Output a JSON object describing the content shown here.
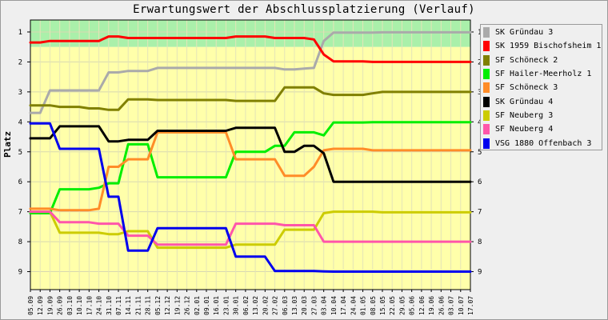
{
  "chart_data": {
    "type": "line",
    "title": "Erwartungswert der Abschlussplatzierung (Verlauf)",
    "ylabel": "Platz",
    "xlabel": "",
    "ylim": [
      0.6,
      9.6
    ],
    "y_ticks": [
      1,
      2,
      3,
      4,
      5,
      6,
      7,
      8,
      9
    ],
    "grid": true,
    "y_axis_reversed": true,
    "legend_position": "right",
    "background_bands": [
      {
        "from": 0.6,
        "to": 1.5,
        "color": "#aaf0aa"
      },
      {
        "from": 1.5,
        "to": 9.6,
        "color": "#ffffaa"
      }
    ],
    "categories": [
      "05.09",
      "12.09",
      "19.09",
      "26.09",
      "03.10",
      "10.10",
      "17.10",
      "24.10",
      "31.10",
      "07.11",
      "14.11",
      "21.11",
      "28.11",
      "05.12",
      "12.12",
      "19.12",
      "26.12",
      "02.01",
      "09.01",
      "16.01",
      "23.01",
      "30.01",
      "06.02",
      "13.02",
      "20.02",
      "27.02",
      "06.03",
      "13.03",
      "20.03",
      "27.03",
      "03.04",
      "10.04",
      "17.04",
      "24.04",
      "01.05",
      "08.05",
      "15.05",
      "22.05",
      "29.05",
      "05.06",
      "12.06",
      "19.06",
      "26.06",
      "03.07",
      "10.07",
      "17.07"
    ],
    "x_ticks": [
      "05.09",
      "12.09",
      "19.09",
      "26.09",
      "03.10",
      "10.10",
      "17.10",
      "24.10",
      "31.10",
      "07.11",
      "14.11",
      "21.11",
      "28.11",
      "05.12",
      "12.12",
      "19.12",
      "26.12",
      "02.01",
      "09.01",
      "16.01",
      "23.01",
      "30.01",
      "06.02",
      "13.02",
      "20.02",
      "27.02",
      "06.03",
      "13.03",
      "20.03",
      "27.03",
      "03.04",
      "10.04",
      "17.04",
      "24.04",
      "01.05",
      "08.05",
      "15.05",
      "22.05",
      "29.05",
      "05.06",
      "12.06",
      "19.06",
      "26.06",
      "03.07",
      "10.07",
      "17.07"
    ],
    "series": [
      {
        "name": "SK Gründau 3",
        "color": "#aaaaaa",
        "values": [
          3.7,
          3.7,
          2.95,
          2.95,
          2.95,
          2.95,
          2.95,
          2.95,
          2.35,
          2.35,
          2.3,
          2.3,
          2.3,
          2.2,
          2.2,
          2.2,
          2.2,
          2.2,
          2.2,
          2.2,
          2.2,
          2.2,
          2.2,
          2.2,
          2.2,
          2.2,
          2.25,
          2.25,
          2.22,
          2.2,
          1.3,
          1.02,
          1.02,
          1.02,
          1.02,
          1.02,
          1.01,
          1.01,
          1.01,
          1.01,
          1.01,
          1.01,
          1.01,
          1.01,
          1.01,
          1.01
        ]
      },
      {
        "name": "SK 1959 Bischofsheim 1",
        "color": "#ff0000",
        "values": [
          1.35,
          1.35,
          1.3,
          1.3,
          1.3,
          1.3,
          1.3,
          1.3,
          1.15,
          1.15,
          1.2,
          1.2,
          1.2,
          1.2,
          1.2,
          1.2,
          1.2,
          1.2,
          1.2,
          1.2,
          1.2,
          1.15,
          1.15,
          1.15,
          1.15,
          1.2,
          1.2,
          1.2,
          1.2,
          1.25,
          1.75,
          1.98,
          1.98,
          1.98,
          1.98,
          2.0,
          2.0,
          2.0,
          2.0,
          2.0,
          2.0,
          2.0,
          2.0,
          2.0,
          2.0,
          2.0
        ]
      },
      {
        "name": "SF Schöneck 2",
        "color": "#808000",
        "values": [
          3.45,
          3.45,
          3.45,
          3.5,
          3.5,
          3.5,
          3.55,
          3.55,
          3.6,
          3.6,
          3.25,
          3.25,
          3.25,
          3.27,
          3.27,
          3.27,
          3.27,
          3.27,
          3.27,
          3.27,
          3.27,
          3.3,
          3.3,
          3.3,
          3.3,
          3.3,
          2.85,
          2.85,
          2.85,
          2.85,
          3.05,
          3.1,
          3.1,
          3.1,
          3.1,
          3.05,
          3.0,
          3.0,
          3.0,
          3.0,
          3.0,
          3.0,
          3.0,
          3.0,
          3.0,
          3.0
        ]
      },
      {
        "name": "SF Hailer-Meerholz 1",
        "color": "#00ee00",
        "values": [
          7.05,
          7.05,
          7.05,
          6.25,
          6.25,
          6.25,
          6.25,
          6.2,
          6.05,
          6.05,
          4.75,
          4.75,
          4.75,
          5.85,
          5.85,
          5.85,
          5.85,
          5.85,
          5.85,
          5.85,
          5.85,
          5.0,
          5.0,
          5.0,
          5.0,
          4.8,
          4.8,
          4.35,
          4.35,
          4.35,
          4.45,
          4.02,
          4.02,
          4.02,
          4.02,
          4.01,
          4.01,
          4.01,
          4.01,
          4.01,
          4.01,
          4.01,
          4.01,
          4.01,
          4.01,
          4.01
        ]
      },
      {
        "name": "SF Schöneck 3",
        "color": "#ff8c28",
        "values": [
          6.9,
          6.9,
          6.9,
          6.95,
          6.95,
          6.95,
          6.95,
          6.9,
          5.5,
          5.5,
          5.25,
          5.25,
          5.25,
          4.35,
          4.35,
          4.35,
          4.35,
          4.35,
          4.35,
          4.35,
          4.35,
          5.25,
          5.25,
          5.25,
          5.25,
          5.25,
          5.8,
          5.8,
          5.8,
          5.5,
          4.95,
          4.9,
          4.9,
          4.9,
          4.9,
          4.95,
          4.95,
          4.95,
          4.95,
          4.95,
          4.95,
          4.95,
          4.95,
          4.95,
          4.95,
          4.95
        ]
      },
      {
        "name": "SK Gründau 4",
        "color": "#000000",
        "values": [
          4.55,
          4.55,
          4.55,
          4.15,
          4.15,
          4.15,
          4.15,
          4.15,
          4.65,
          4.65,
          4.6,
          4.6,
          4.6,
          4.3,
          4.3,
          4.3,
          4.3,
          4.3,
          4.3,
          4.3,
          4.3,
          4.2,
          4.2,
          4.2,
          4.2,
          4.2,
          5.0,
          5.0,
          4.8,
          4.8,
          5.05,
          6.0,
          6.0,
          6.0,
          6.0,
          6.0,
          6.0,
          6.0,
          6.0,
          6.0,
          6.0,
          6.0,
          6.0,
          6.0,
          6.0,
          6.0
        ]
      },
      {
        "name": "SF Neuberg 3",
        "color": "#cccc00",
        "values": [
          7.0,
          7.0,
          7.0,
          7.7,
          7.7,
          7.7,
          7.7,
          7.7,
          7.75,
          7.75,
          7.65,
          7.65,
          7.65,
          8.2,
          8.2,
          8.2,
          8.2,
          8.2,
          8.2,
          8.2,
          8.2,
          8.1,
          8.1,
          8.1,
          8.1,
          8.1,
          7.6,
          7.6,
          7.6,
          7.6,
          7.05,
          7.0,
          7.0,
          7.0,
          7.0,
          7.0,
          7.02,
          7.02,
          7.02,
          7.02,
          7.02,
          7.02,
          7.02,
          7.02,
          7.02,
          7.02
        ]
      },
      {
        "name": "SF Neuberg 4",
        "color": "#ff55aa",
        "values": [
          7.0,
          7.0,
          7.0,
          7.35,
          7.35,
          7.35,
          7.35,
          7.4,
          7.4,
          7.4,
          7.8,
          7.8,
          7.8,
          8.1,
          8.1,
          8.1,
          8.1,
          8.1,
          8.1,
          8.1,
          8.1,
          7.4,
          7.4,
          7.4,
          7.4,
          7.4,
          7.45,
          7.45,
          7.45,
          7.45,
          8.0,
          8.0,
          8.0,
          8.0,
          8.0,
          8.0,
          8.0,
          8.0,
          8.0,
          8.0,
          8.0,
          8.0,
          8.0,
          8.0,
          8.0,
          8.0
        ]
      },
      {
        "name": "VSG 1880 Offenbach 3",
        "color": "#0000ee",
        "values": [
          4.05,
          4.05,
          4.05,
          4.9,
          4.9,
          4.9,
          4.9,
          4.9,
          6.5,
          6.5,
          8.3,
          8.3,
          8.3,
          7.55,
          7.55,
          7.55,
          7.55,
          7.55,
          7.55,
          7.55,
          7.55,
          8.5,
          8.5,
          8.5,
          8.5,
          8.98,
          8.98,
          8.98,
          8.98,
          8.98,
          8.99,
          9.0,
          9.0,
          9.0,
          9.0,
          9.0,
          9.0,
          9.0,
          9.0,
          9.0,
          9.0,
          9.0,
          9.0,
          9.0,
          9.0,
          9.0
        ]
      }
    ]
  }
}
